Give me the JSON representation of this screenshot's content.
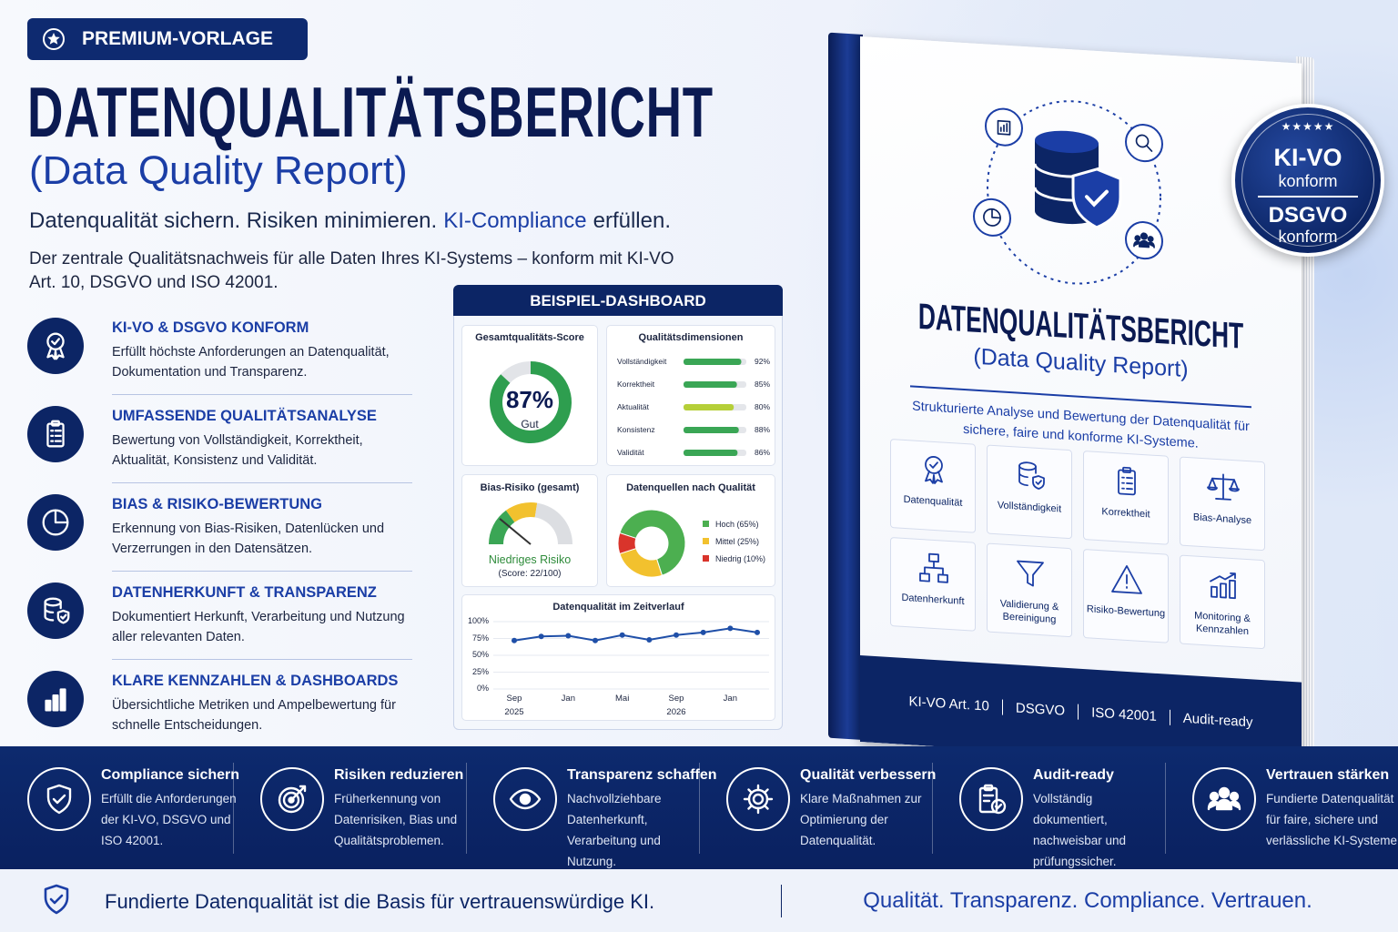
{
  "badge": "PREMIUM-VORLAGE",
  "header": {
    "title": "DATENQUALITÄTSBERICHT",
    "subtitle": "(Data Quality Report)",
    "tagline": {
      "part1": "Datenqualität sichern. Risiken minimieren.",
      "highlight": "KI-Compliance",
      "part2": "erfüllen."
    },
    "description": "Der zentrale Qualitätsnachweis für alle Daten Ihres KI-Systems – konform mit KI-VO Art. 10, DSGVO und ISO 42001."
  },
  "features": [
    {
      "title": "KI-VO & DSGVO KONFORM",
      "text": "Erfüllt höchste Anforderungen an Datenqualität, Dokumentation und Transparenz."
    },
    {
      "title": "UMFASSENDE QUALITÄTSANALYSE",
      "text": "Bewertung von Vollständigkeit, Korrektheit, Aktualität, Konsistenz und Validität."
    },
    {
      "title": "BIAS & RISIKO-BEWERTUNG",
      "text": "Erkennung von Bias-Risiken, Datenlücken und Verzerrungen in den Datensätzen."
    },
    {
      "title": "DATENHERKUNFT & TRANSPARENZ",
      "text": "Dokumentiert Herkunft, Verarbeitung und Nutzung aller relevanten Daten."
    },
    {
      "title": "KLARE KENNZAHLEN & DASHBOARDS",
      "text": "Übersichtliche Metriken und Ampelbewertung für schnelle Entscheidungen."
    }
  ],
  "dashboard": {
    "title": "BEISPIEL-DASHBOARD",
    "score": {
      "type": "gauge",
      "title": "Gesamtqualitäts-Score",
      "value": 87,
      "value_label": "87%",
      "rating": "Gut",
      "lim": [
        0,
        100
      ],
      "color": "#2e9e4f"
    },
    "dimensions": {
      "type": "bar",
      "title": "Qualitätsdimensionen",
      "categories": [
        "Vollständigkeit",
        "Korrektheit",
        "Aktualität",
        "Konsistenz",
        "Validität"
      ],
      "values": [
        92,
        85,
        80,
        88,
        86
      ],
      "value_labels": [
        "92%",
        "85%",
        "80%",
        "88%",
        "86%"
      ],
      "colors": [
        "#3aa655",
        "#3aa655",
        "#b5cf38",
        "#3aa655",
        "#3aa655"
      ],
      "xlim": [
        0,
        100
      ]
    },
    "bias": {
      "type": "gauge",
      "title": "Bias-Risiko (gesamt)",
      "rating": "Niedriges Risiko",
      "value": 22,
      "value_label": "(Score: 22/100)",
      "lim": [
        0,
        100
      ]
    },
    "sources": {
      "type": "pie",
      "title": "Datenquellen nach Qualität",
      "categories": [
        "Hoch (65%)",
        "Mittel (25%)",
        "Niedrig (10%)"
      ],
      "values": [
        65,
        25,
        10
      ],
      "colors": [
        "#4caf50",
        "#f2c12e",
        "#d9342b"
      ]
    },
    "trend": {
      "type": "line",
      "title": "Datenqualität im Zeitverlauf",
      "categories": [
        "Sep 2025",
        null,
        "Jan",
        null,
        "Mai",
        null,
        "Sep 2026",
        null,
        "Jan",
        null
      ],
      "values": [
        72,
        78,
        79,
        72,
        80,
        73,
        80,
        84,
        90,
        84
      ],
      "color": "#1f4fa8",
      "ylim": [
        0,
        100
      ],
      "yticks": [
        {
          "value": 0,
          "label": "0%"
        },
        {
          "value": 25,
          "label": "25%"
        },
        {
          "value": 50,
          "label": "50%"
        },
        {
          "value": 75,
          "label": "75%"
        },
        {
          "value": 100,
          "label": "100%"
        }
      ]
    }
  },
  "book": {
    "title": "DATENQUALITÄTSBERICHT",
    "subtitle": "(Data Quality Report)",
    "description": "Strukturierte Analyse und Bewertung der Datenqualität für sichere, faire und konforme KI-Systeme.",
    "items": [
      "Datenqualität",
      "Vollständigkeit",
      "Korrektheit",
      "Bias-Analyse",
      "Datenherkunft",
      "Validierung & Bereinigung",
      "Risiko-Bewertung",
      "Monitoring & Kennzahlen"
    ],
    "footer": [
      "KI-VO Art. 10",
      "DSGVO",
      "ISO 42001",
      "Audit-ready"
    ]
  },
  "seal": {
    "stars": "★★★★★",
    "top": "KI-VO",
    "top_sub": "konform",
    "bottom": "DSGVO",
    "bottom_sub": "konform"
  },
  "benefits": [
    {
      "title": "Compliance sichern",
      "text": "Erfüllt die Anforderungen der KI-VO, DSGVO und ISO 42001."
    },
    {
      "title": "Risiken reduzieren",
      "text": "Früherkennung von Datenrisiken, Bias und Qualitätsproblemen."
    },
    {
      "title": "Transparenz schaffen",
      "text": "Nachvollziehbare Datenherkunft, Verarbeitung und Nutzung."
    },
    {
      "title": "Qualität verbessern",
      "text": "Klare Maßnahmen zur Optimierung der Datenqualität."
    },
    {
      "title": "Audit-ready",
      "text": "Vollständig dokumentiert, nachweisbar und prüfungssicher."
    },
    {
      "title": "Vertrauen stärken",
      "text": "Fundierte Datenqualität für faire, sichere und verlässliche KI-Systeme."
    }
  ],
  "footer": {
    "left": "Fundierte Datenqualität ist die Basis für vertrauenswürdige KI.",
    "right": "Qualität. Transparenz. Compliance. Vertrauen."
  }
}
